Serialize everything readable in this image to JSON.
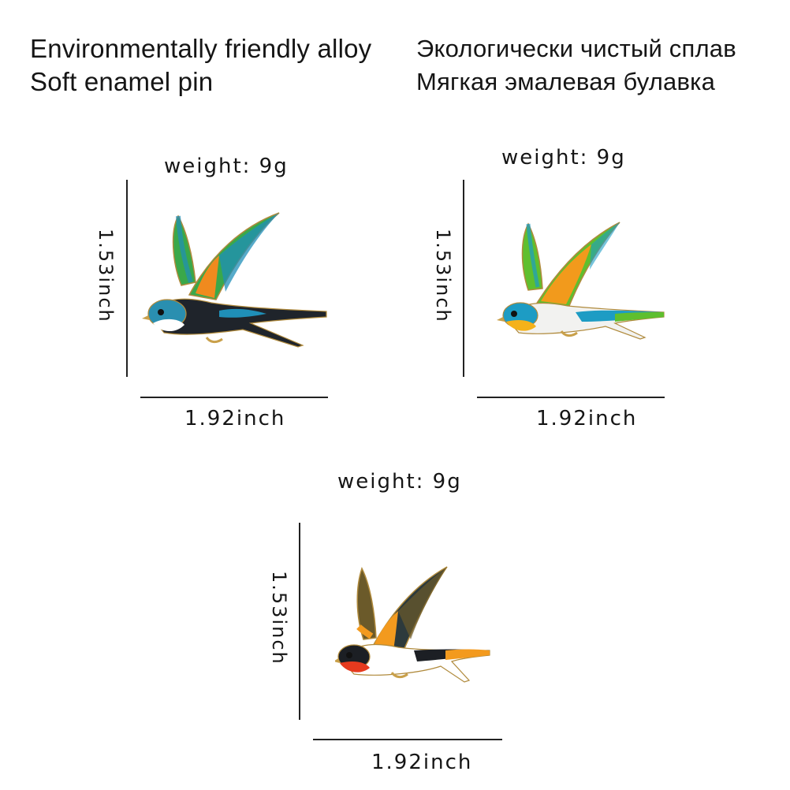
{
  "header": {
    "english_line1": "Environmentally friendly alloy",
    "english_line2": "Soft enamel pin",
    "russian_line1": "Экологически чистый сплав",
    "russian_line2": "Мягкая эмалевая булавка"
  },
  "products": [
    {
      "weight_label": "weight:  9g",
      "height_label": "1.53inch",
      "width_label": "1.92inch",
      "variant": "black-back swallow pin",
      "colors": {
        "back": "#1f242b",
        "wing_green": "#3aa84a",
        "wing_orange": "#f08a1e",
        "wing_blue": "#1f8fb8",
        "throat": "#ffffff"
      }
    },
    {
      "weight_label": "weight:  9g",
      "height_label": "1.53inch",
      "width_label": "1.92inch",
      "variant": "yellow-face swallow pin",
      "colors": {
        "back": "#f2f2f0",
        "wing_green": "#5fbf2e",
        "wing_orange": "#f29a1c",
        "wing_blue": "#1d9cc4",
        "throat": "#f5b21a"
      }
    },
    {
      "weight_label": "weight:  9g",
      "height_label": "1.53inch",
      "width_label": "1.92inch",
      "variant": "red-throat swallow pin",
      "colors": {
        "back": "#1c1f24",
        "wing_green": "#6b5a2a",
        "wing_orange": "#f39a1e",
        "wing_blue": "#2d3a3c",
        "throat": "#e63a1e"
      }
    }
  ]
}
